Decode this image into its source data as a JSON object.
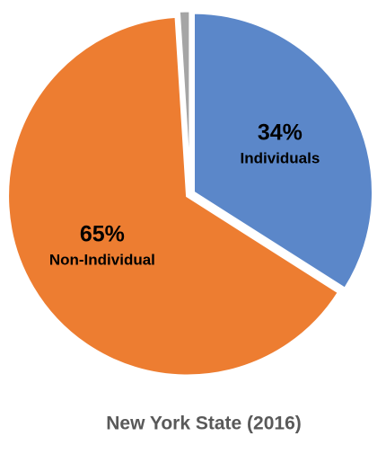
{
  "chart_data": {
    "type": "pie",
    "title": "New York State (2016)",
    "categories": [
      "Individuals",
      "Non-Individual",
      null
    ],
    "values": [
      34,
      65,
      1
    ],
    "value_labels": [
      "34%",
      "65%",
      null
    ],
    "colors": [
      "#5b87c9",
      "#ed7d31",
      "#a5a5a5"
    ]
  }
}
